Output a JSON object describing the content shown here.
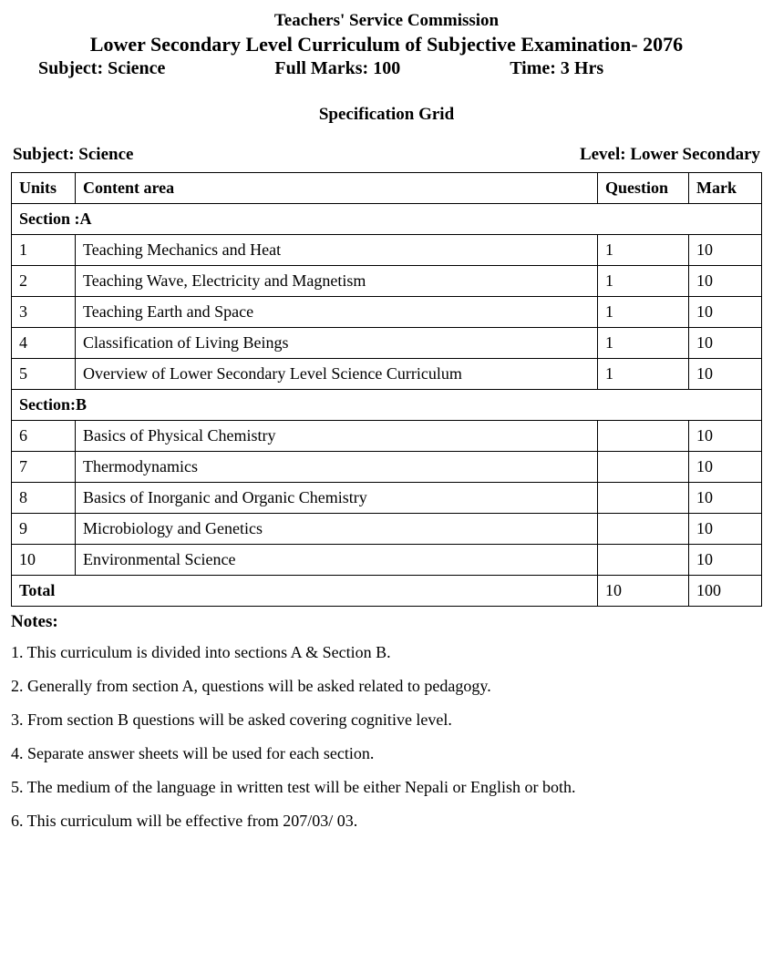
{
  "header": {
    "org": "Teachers' Service Commission",
    "title": "Lower Secondary Level Curriculum of Subjective Examination- 2076",
    "subject_label": "Subject: Science",
    "fullmarks_label": "Full Marks: 100",
    "time_label": "Time: 3 Hrs"
  },
  "spec_grid_title": "Specification Grid",
  "sub_level": {
    "subject": "Subject: Science",
    "level": "Level: Lower Secondary"
  },
  "table": {
    "columns": [
      "Units",
      "Content area",
      "Question",
      "Mark"
    ],
    "section_a_label": "Section :A",
    "section_b_label": "Section:B",
    "section_a_rows": [
      {
        "unit": "1",
        "content": "Teaching  Mechanics and Heat",
        "question": "1",
        "mark": "10",
        "tall": true
      },
      {
        "unit": "2",
        "content": "Teaching Wave, Electricity and Magnetism",
        "question": "1",
        "mark": "10"
      },
      {
        "unit": "3",
        "content": "Teaching Earth and Space",
        "question": "1",
        "mark": "10"
      },
      {
        "unit": "4",
        "content": "Classification of  Living Beings",
        "question": "1",
        "mark": "10"
      },
      {
        "unit": "5",
        "content": "Overview of Lower Secondary Level Science Curriculum",
        "question": "1",
        "mark": "10"
      }
    ],
    "section_b_rows": [
      {
        "unit": "6",
        "content": "Basics of Physical Chemistry",
        "question": "",
        "mark": "10"
      },
      {
        "unit": "7",
        "content": "Thermodynamics",
        "question": "",
        "mark": "10"
      },
      {
        "unit": "8",
        "content": "Basics of Inorganic and Organic Chemistry",
        "question": "",
        "mark": "10"
      },
      {
        "unit": "9",
        "content": "Microbiology and Genetics",
        "question": "",
        "mark": "10"
      },
      {
        "unit": "10",
        "content": "Environmental Science",
        "question": "",
        "mark": "10"
      }
    ],
    "total_label": "Total",
    "total_question": "10",
    "total_mark": "100"
  },
  "notes": {
    "title": "Notes:",
    "items": [
      "1. This curriculum is divided into sections A & Section B.",
      "2. Generally from section A, questions will be asked related to pedagogy.",
      "3. From section B questions will be asked covering cognitive level.",
      "4. Separate answer sheets will be used for each section.",
      "5. The medium of the language in written test will be either Nepali or English or both.",
      "6. This curriculum will be effective from 207/03/ 03."
    ]
  }
}
